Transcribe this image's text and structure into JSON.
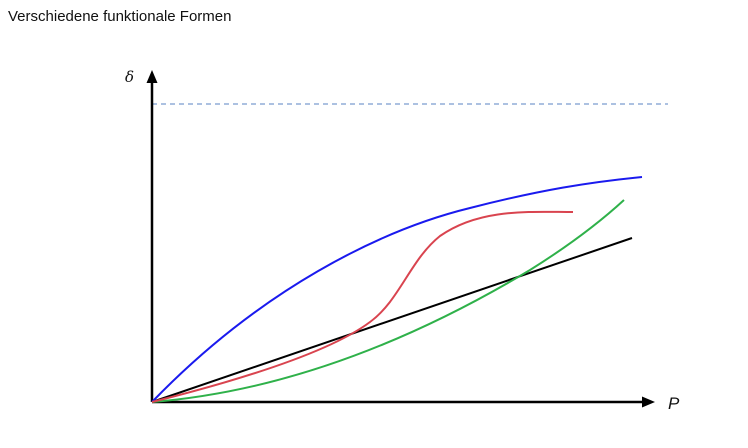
{
  "title": "Verschiedene funktionale Formen",
  "axes": {
    "x_label": "P",
    "y_label": "δ"
  },
  "colors": {
    "axis": "#000000",
    "asymptote": "#7a9ccf",
    "curve_blue": "#1a1aee",
    "curve_red": "#d9444f",
    "curve_green": "#2fb14a",
    "curve_black": "#000000"
  }
}
